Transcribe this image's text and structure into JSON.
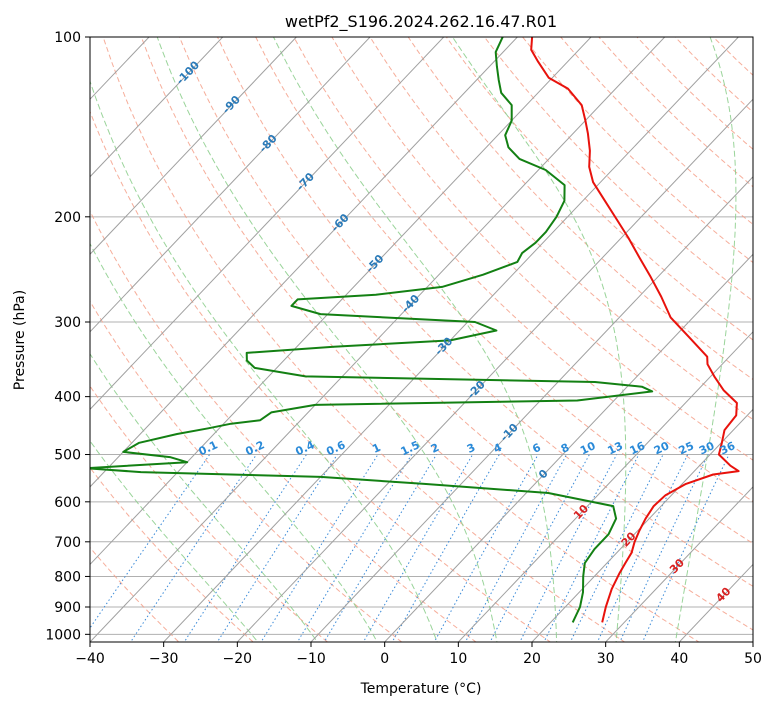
{
  "chart_data": {
    "type": "line",
    "title": "wetPf2_S196.2024.262.16.47.R01",
    "xlabel": "Temperature (°C)",
    "ylabel": "Pressure (hPa)",
    "xlim": [
      -40,
      50
    ],
    "ylim": [
      1030,
      100
    ],
    "y_scale": "log",
    "x_ticks": [
      -40,
      -30,
      -20,
      -10,
      0,
      10,
      20,
      30,
      40,
      50
    ],
    "y_ticks": [
      100,
      200,
      300,
      400,
      500,
      600,
      700,
      800,
      900,
      1000
    ],
    "grid": true,
    "colors": {
      "temperature": "#e8120c",
      "dewpoint": "#138013",
      "isotherms": "#a0a0a0",
      "dry_adiabats": "#f5a08a",
      "moist_adiabats": "#8fcf8f",
      "mixing_ratio": "#3a8ad8",
      "isotherm_labels": "#2a7ab8",
      "mixing_ratio_labels": "#2a8ad8",
      "theta_labels": "#d82020"
    },
    "series": [
      {
        "points": [
          [
            27.0,
            955
          ],
          [
            25.5,
            900
          ],
          [
            24.0,
            840
          ],
          [
            23.0,
            790
          ],
          [
            22.5,
            760
          ],
          [
            22.0,
            730
          ],
          [
            21.0,
            700
          ],
          [
            20.2,
            670
          ],
          [
            19.5,
            640
          ],
          [
            19.0,
            610
          ],
          [
            19.2,
            585
          ],
          [
            20.5,
            560
          ],
          [
            23.0,
            540
          ],
          [
            26.0,
            533
          ],
          [
            24.2,
            522
          ],
          [
            21.2,
            500
          ],
          [
            20.2,
            480
          ],
          [
            18.8,
            455
          ],
          [
            18.5,
            430
          ],
          [
            17.0,
            410
          ],
          [
            13.5,
            390
          ],
          [
            10.5,
            370
          ],
          [
            8.0,
            353
          ],
          [
            7.0,
            343
          ],
          [
            2.0,
            318
          ],
          [
            -3.0,
            295
          ],
          [
            -7.0,
            272
          ],
          [
            -11.0,
            252
          ],
          [
            -15.0,
            234
          ],
          [
            -19.0,
            217
          ],
          [
            -23.0,
            202
          ],
          [
            -27.0,
            188
          ],
          [
            -31.0,
            175
          ],
          [
            -33.5,
            165
          ],
          [
            -35.5,
            155
          ],
          [
            -38.0,
            145
          ],
          [
            -40.0,
            138
          ],
          [
            -42.5,
            130
          ],
          [
            -46.5,
            122
          ],
          [
            -50.5,
            117
          ],
          [
            -54.0,
            110
          ],
          [
            -56.5,
            105
          ],
          [
            -58.0,
            100
          ]
        ]
      },
      {
        "points": [
          [
            23.0,
            955
          ],
          [
            22.0,
            900
          ],
          [
            20.5,
            850
          ],
          [
            18.5,
            800
          ],
          [
            17.0,
            760
          ],
          [
            16.5,
            720
          ],
          [
            16.5,
            680
          ],
          [
            15.5,
            640
          ],
          [
            13.5,
            610
          ],
          [
            3.0,
            580
          ],
          [
            -15.0,
            560
          ],
          [
            -30.0,
            545
          ],
          [
            -55.0,
            535
          ],
          [
            -63.0,
            527
          ],
          [
            -50.0,
            515
          ],
          [
            -53.0,
            505
          ],
          [
            -60.0,
            495
          ],
          [
            -59.0,
            478
          ],
          [
            -55.0,
            462
          ],
          [
            -51.5,
            452
          ],
          [
            -49.0,
            444
          ],
          [
            -45.5,
            438
          ],
          [
            -45.0,
            425
          ],
          [
            -40.0,
            413
          ],
          [
            -5.0,
            406
          ],
          [
            4.0,
            392
          ],
          [
            2.0,
            385
          ],
          [
            -5.0,
            378
          ],
          [
            -45.0,
            370
          ],
          [
            -53.0,
            358
          ],
          [
            -55.0,
            348
          ],
          [
            -56.0,
            338
          ],
          [
            -45.0,
            330
          ],
          [
            -30.0,
            322
          ],
          [
            -25.0,
            310
          ],
          [
            -29.0,
            300
          ],
          [
            -51.0,
            291
          ],
          [
            -56.0,
            282
          ],
          [
            -56.0,
            275
          ],
          [
            -46.0,
            270
          ],
          [
            -38.0,
            262
          ],
          [
            -34.0,
            250
          ],
          [
            -31.0,
            238
          ],
          [
            -31.5,
            230
          ],
          [
            -31.0,
            221
          ],
          [
            -31.0,
            212
          ],
          [
            -31.5,
            200
          ],
          [
            -32.5,
            188
          ],
          [
            -34.5,
            177
          ],
          [
            -39.0,
            167
          ],
          [
            -44.0,
            160
          ],
          [
            -47.0,
            153
          ],
          [
            -49.0,
            146
          ],
          [
            -50.0,
            138
          ],
          [
            -52.0,
            130
          ],
          [
            -55.0,
            124
          ],
          [
            -57.0,
            118
          ],
          [
            -59.0,
            112
          ],
          [
            -61.0,
            106
          ],
          [
            -62.0,
            100
          ]
        ]
      }
    ],
    "isotherm_labels": [
      "-100",
      "-90",
      "-80",
      "-70",
      "-60",
      "-50",
      "-40",
      "-30",
      "-20",
      "-10",
      "0",
      "10",
      "20",
      "30",
      "40"
    ],
    "mixing_ratio_labels": [
      "0.1",
      "0.2",
      "0.4",
      "0.6",
      "1",
      "1.5",
      "2",
      "3",
      "4",
      "6",
      "8",
      "10",
      "13",
      "16",
      "20",
      "25",
      "30",
      "36"
    ]
  }
}
